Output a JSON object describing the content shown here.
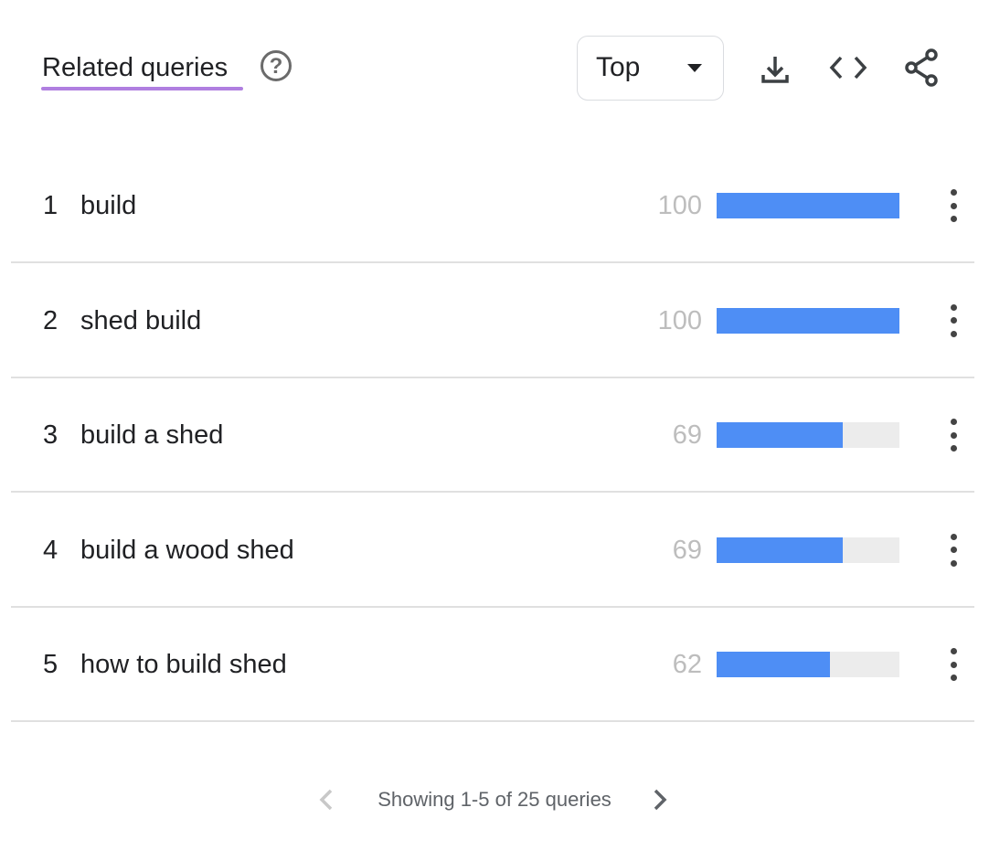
{
  "header": {
    "title": "Related queries",
    "help_icon": "help-circle-icon",
    "dropdown_value": "Top",
    "actions": [
      "download-icon",
      "embed-code-icon",
      "share-icon"
    ],
    "accent_color": "#b07fe0"
  },
  "rows": [
    {
      "rank": "1",
      "query": "build",
      "value": "100",
      "score": 100
    },
    {
      "rank": "2",
      "query": "shed build",
      "value": "100",
      "score": 100
    },
    {
      "rank": "3",
      "query": "build a shed",
      "value": "69",
      "score": 69
    },
    {
      "rank": "4",
      "query": "build a wood shed",
      "value": "69",
      "score": 69
    },
    {
      "rank": "5",
      "query": "how to build shed",
      "value": "62",
      "score": 62
    }
  ],
  "bar_color": "#4e8ef5",
  "footer": {
    "text": "Showing 1-5 of 25 queries"
  }
}
